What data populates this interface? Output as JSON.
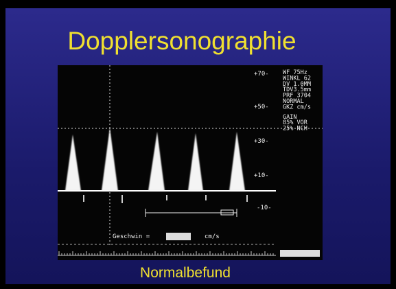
{
  "header": {
    "title": "Dopplersonographie"
  },
  "scan": {
    "scale_labels": [
      "+70-",
      "+50-",
      "+30-",
      "+10-",
      "-10-"
    ],
    "settings": [
      "WF 75Hz",
      "WINKL 62",
      "DV 1.0MM",
      "TDV3.5mm",
      "PRF 3704",
      "NORMAL",
      "GKZ cm/s",
      "GAIN",
      "85% VOR",
      "25% NCH"
    ],
    "velocity_label": "Geschwin =",
    "velocity_unit": "cm/s"
  },
  "caption": "Normalbefund"
}
